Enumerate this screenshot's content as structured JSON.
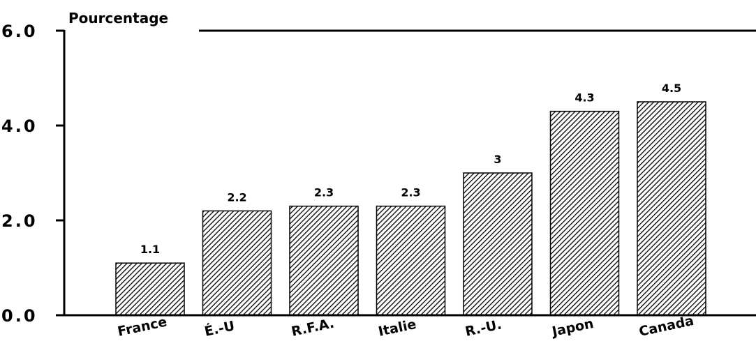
{
  "chart_data": {
    "type": "bar",
    "ylabel": "Pourcentage",
    "categories": [
      "France",
      "É.-U",
      "R.F.A.",
      "Italie",
      "R.-U.",
      "Japon",
      "Canada"
    ],
    "values": [
      1.1,
      2.2,
      2.3,
      2.3,
      3,
      4.3,
      4.5
    ],
    "data_labels": [
      "1.1",
      "2.2",
      "2.3",
      "2.3",
      "3",
      "4.3",
      "4.5"
    ],
    "yticks": [
      "0.0",
      "2.0",
      "4.0",
      "6.0"
    ],
    "ylim": [
      0,
      6
    ],
    "grid": false,
    "bar_fill": "diagonal hatch",
    "colors": {
      "bar": "#000000",
      "axis": "#000000",
      "background": "#ffffff"
    }
  }
}
